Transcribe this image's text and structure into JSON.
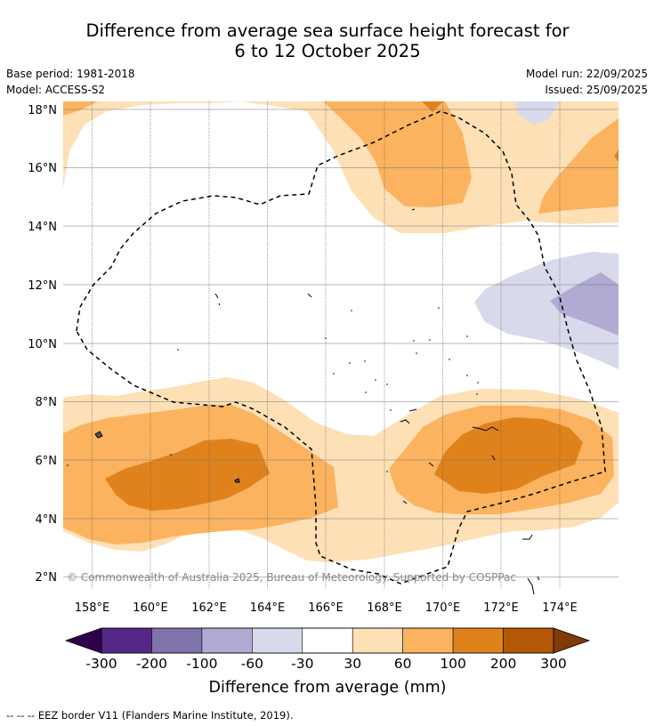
{
  "title": {
    "line1": "Difference from average sea surface height forecast for",
    "line2": "6 to 12 October 2025"
  },
  "meta": {
    "base_period": "Base period: 1981-2018",
    "model": "Model: ACCESS-S2",
    "model_run": "Model run: 22/09/2025",
    "issued": "Issued: 25/09/2025"
  },
  "map": {
    "longitude_labels": [
      "158°E",
      "160°E",
      "162°E",
      "164°E",
      "166°E",
      "168°E",
      "170°E",
      "172°E",
      "174°E"
    ],
    "latitude_labels": [
      "2°N",
      "4°N",
      "6°N",
      "8°N",
      "10°N",
      "12°N",
      "14°N",
      "16°N",
      "18°N"
    ],
    "copyright": "© Commonwealth of Australia 2025, Bureau of Meteorology. Supported by COSPPac",
    "colors": {
      "pos_30_60": "#fde0b6",
      "pos_60_100": "#fbb35f",
      "pos_100_200": "#e0821c",
      "pos_200_300": "#b35806",
      "neg_30_60": "#d8daeb",
      "neg_60_100": "#b1aad2",
      "neg_100_200": "#8073ac",
      "neg_200_300": "#542788",
      "neg_extreme": "#2d004b",
      "pos_extreme": "#7f3b08"
    }
  },
  "colorbar": {
    "tick_labels": [
      "-300",
      "-200",
      "-100",
      "-60",
      "-30",
      "30",
      "60",
      "100",
      "200",
      "300"
    ],
    "segment_colors": [
      "#542788",
      "#8073ac",
      "#b1aad2",
      "#d8daeb",
      "#ffffff",
      "#fde0b6",
      "#fbb35f",
      "#e0821c",
      "#b35806"
    ],
    "left_extend_color": "#2d004b",
    "right_extend_color": "#7f3b08",
    "label": "Difference from average (mm)"
  },
  "footnote": "--  --  -- EEZ border V11 (Flanders Marine Institute, 2019)."
}
